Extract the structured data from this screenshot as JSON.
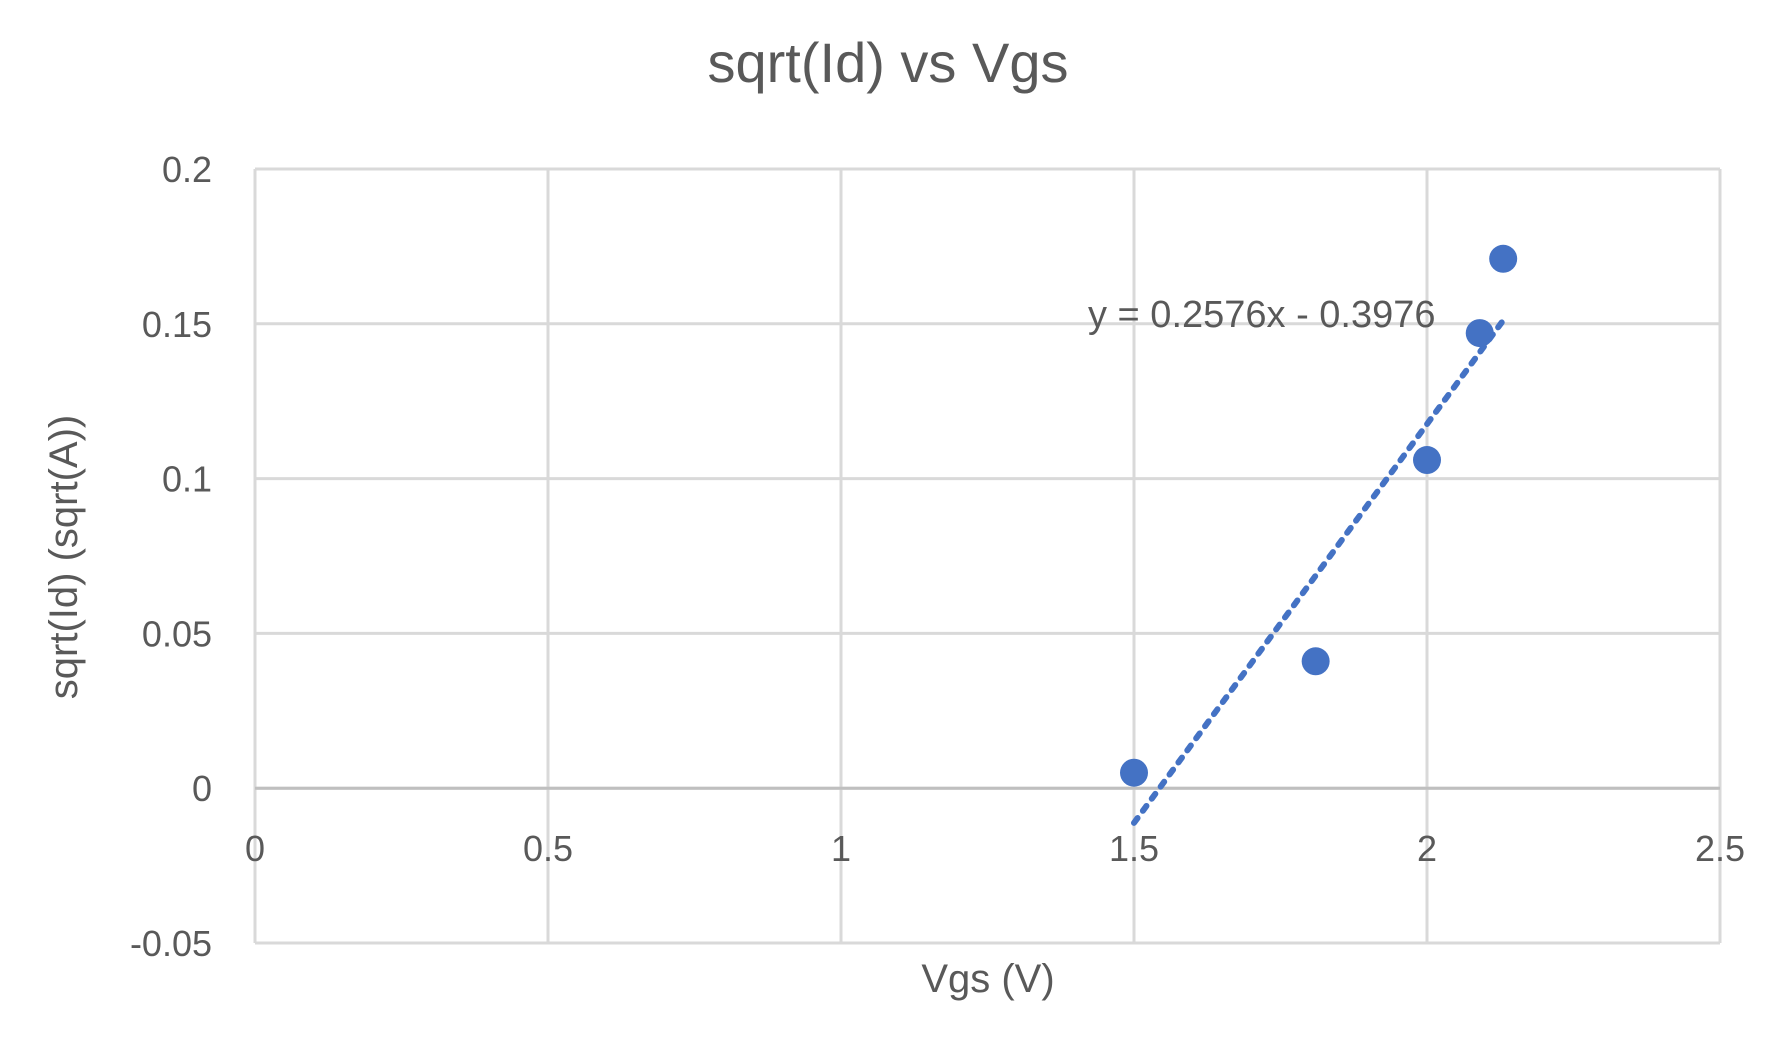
{
  "chart_data": {
    "type": "scatter",
    "title": "sqrt(Id) vs Vgs",
    "xlabel": "Vgs (V)",
    "ylabel": "sqrt(Id) (sqrt(A))",
    "xlim": [
      0,
      2.5
    ],
    "ylim": [
      -0.05,
      0.2
    ],
    "xticks": [
      "0",
      "0.5",
      "1",
      "1.5",
      "2",
      "2.5"
    ],
    "yticks": [
      "0.2",
      "0.15",
      "0.1",
      "0.05",
      "0",
      "-0.05"
    ],
    "grid": true,
    "series": [
      {
        "points": [
          {
            "x": 1.5,
            "y": 0.005
          },
          {
            "x": 1.81,
            "y": 0.041
          },
          {
            "x": 2.0,
            "y": 0.106
          },
          {
            "x": 2.09,
            "y": 0.147
          },
          {
            "x": 2.13,
            "y": 0.171
          }
        ]
      }
    ],
    "trendline": {
      "type": "linear",
      "slope": 0.2576,
      "intercept": -0.3976,
      "x_range": [
        1.5,
        2.13
      ],
      "equation_label": "y = 0.2576x - 0.3976"
    },
    "colors": {
      "marker": "#4472C4",
      "trendline": "#4472C4",
      "grid": "#D9D9D9",
      "text": "#595959"
    }
  }
}
